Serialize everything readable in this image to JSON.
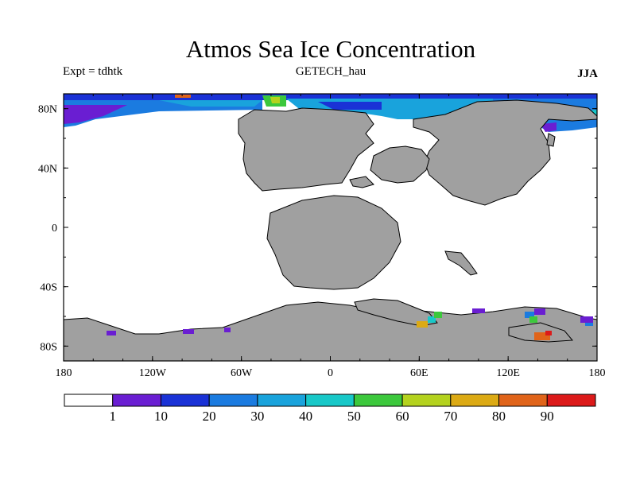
{
  "title": "Atmos Sea Ice Concentration",
  "expt_label": "Expt = tdhtk",
  "model_label": "GETECH_hau",
  "season_label": "JJA",
  "x_ticks": [
    "180",
    "120W",
    "60W",
    "0",
    "60E",
    "120E",
    "180"
  ],
  "y_ticks": [
    "80N",
    "40N",
    "0",
    "40S",
    "80S"
  ],
  "colorbar": {
    "labels": [
      "1",
      "10",
      "20",
      "30",
      "40",
      "50",
      "60",
      "70",
      "80",
      "90"
    ],
    "colors": [
      "#ffffff",
      "#6a1ed2",
      "#1a32d6",
      "#1b7be0",
      "#19a3dc",
      "#18c8c8",
      "#3cc83c",
      "#b4d21e",
      "#dcaa14",
      "#e0641a",
      "#dc1a1a"
    ]
  },
  "colors": {
    "land": "#a0a0a0",
    "ocean": "#ffffff",
    "coast": "#000000"
  }
}
